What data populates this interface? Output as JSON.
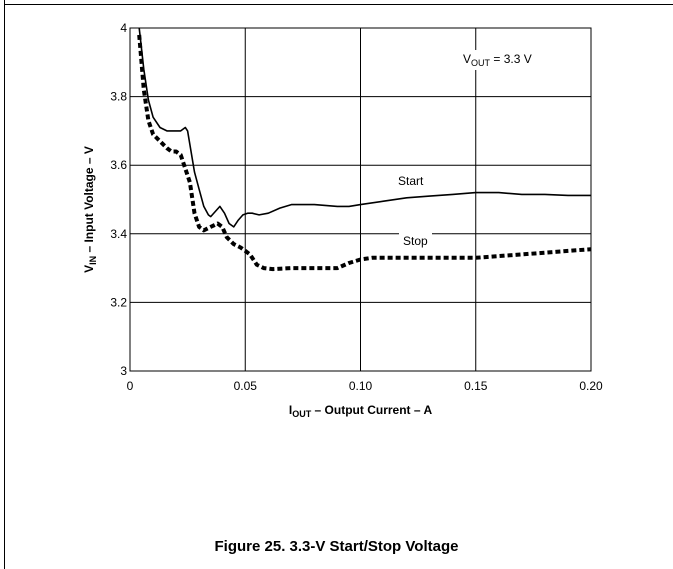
{
  "chart_data": {
    "type": "line",
    "xlabel": {
      "main": "I",
      "sub": "OUT",
      "rest": " – Output Current – A"
    },
    "ylabel": {
      "main": "V",
      "sub": "IN",
      "rest": " – Input Voltage – V"
    },
    "xlim": [
      0,
      0.2
    ],
    "ylim": [
      3,
      4
    ],
    "grid": true,
    "xticks": [
      {
        "value": 0,
        "label": "0"
      },
      {
        "value": 0.05,
        "label": "0.05"
      },
      {
        "value": 0.1,
        "label": "0.10"
      },
      {
        "value": 0.15,
        "label": "0.15"
      },
      {
        "value": 0.2,
        "label": "0.20"
      }
    ],
    "yticks": [
      {
        "value": 3,
        "label": "3"
      },
      {
        "value": 3.2,
        "label": "3.2"
      },
      {
        "value": 3.4,
        "label": "3.4"
      },
      {
        "value": 3.6,
        "label": "3.6"
      },
      {
        "value": 3.8,
        "label": "3.8"
      },
      {
        "value": 4,
        "label": "4"
      }
    ],
    "annotation": {
      "main": "V",
      "sub": "OUT",
      "rest": " = 3.3 V"
    },
    "series": [
      {
        "name": "Start",
        "style": "solid",
        "color": "#000000",
        "x": [
          0.004,
          0.006,
          0.008,
          0.01,
          0.013,
          0.016,
          0.019,
          0.022,
          0.024,
          0.025,
          0.026,
          0.028,
          0.03,
          0.032,
          0.034,
          0.035,
          0.037,
          0.039,
          0.041,
          0.043,
          0.045,
          0.047,
          0.049,
          0.051,
          0.053,
          0.056,
          0.06,
          0.065,
          0.07,
          0.08,
          0.09,
          0.095,
          0.1,
          0.11,
          0.12,
          0.13,
          0.14,
          0.15,
          0.16,
          0.17,
          0.18,
          0.19,
          0.2
        ],
        "y": [
          4.0,
          3.88,
          3.79,
          3.74,
          3.71,
          3.7,
          3.7,
          3.7,
          3.71,
          3.7,
          3.66,
          3.58,
          3.53,
          3.48,
          3.455,
          3.45,
          3.465,
          3.48,
          3.46,
          3.43,
          3.42,
          3.44,
          3.455,
          3.46,
          3.46,
          3.455,
          3.46,
          3.475,
          3.485,
          3.485,
          3.48,
          3.48,
          3.485,
          3.495,
          3.505,
          3.51,
          3.515,
          3.52,
          3.52,
          3.515,
          3.515,
          3.512,
          3.512
        ]
      },
      {
        "name": "Stop",
        "style": "dashed",
        "color": "#000000",
        "x": [
          0.004,
          0.006,
          0.008,
          0.01,
          0.013,
          0.016,
          0.018,
          0.02,
          0.022,
          0.024,
          0.026,
          0.028,
          0.03,
          0.032,
          0.035,
          0.038,
          0.04,
          0.042,
          0.045,
          0.048,
          0.05,
          0.052,
          0.055,
          0.058,
          0.062,
          0.07,
          0.08,
          0.085,
          0.09,
          0.095,
          0.1,
          0.105,
          0.11,
          0.12,
          0.13,
          0.14,
          0.15,
          0.16,
          0.17,
          0.18,
          0.19,
          0.2
        ],
        "y": [
          3.98,
          3.82,
          3.73,
          3.69,
          3.67,
          3.65,
          3.64,
          3.64,
          3.63,
          3.59,
          3.55,
          3.46,
          3.42,
          3.41,
          3.42,
          3.43,
          3.42,
          3.39,
          3.37,
          3.36,
          3.35,
          3.34,
          3.31,
          3.3,
          3.297,
          3.3,
          3.3,
          3.3,
          3.3,
          3.315,
          3.325,
          3.33,
          3.33,
          3.33,
          3.33,
          3.33,
          3.33,
          3.335,
          3.34,
          3.345,
          3.35,
          3.355
        ]
      }
    ],
    "series_labels": [
      {
        "series": "Start",
        "text": "Start"
      },
      {
        "series": "Stop",
        "text": "Stop"
      }
    ],
    "caption": "Figure 25. 3.3-V Start/Stop Voltage"
  }
}
